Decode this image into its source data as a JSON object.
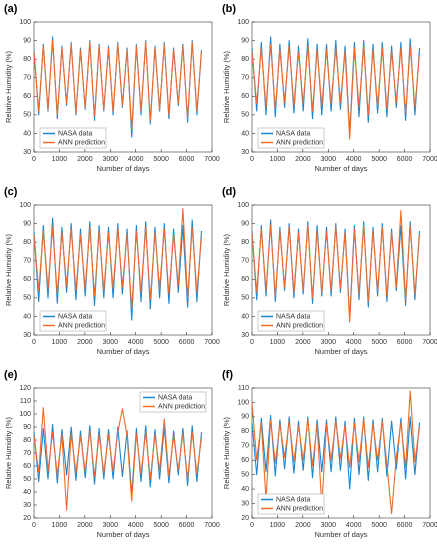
{
  "chart_data": [
    {
      "type": "line",
      "label": "(a)",
      "xlabel": "Number of days",
      "ylabel": "Relative Humidity (%)",
      "x": [
        0,
        183,
        366,
        549,
        732,
        915,
        1098,
        1281,
        1464,
        1647,
        1830,
        2013,
        2196,
        2379,
        2562,
        2745,
        2928,
        3111,
        3294,
        3477,
        3660,
        3843,
        4026,
        4209,
        4392,
        4575,
        4758,
        4941,
        5124,
        5307,
        5490,
        5673,
        5856,
        6039,
        6222,
        6405,
        6588
      ],
      "series": [
        {
          "name": "NASA data",
          "color": "#1a86cf",
          "values": [
            85,
            50,
            88,
            52,
            92,
            48,
            87,
            55,
            89,
            50,
            86,
            53,
            90,
            47,
            88,
            52,
            87,
            50,
            89,
            54,
            86,
            38,
            88,
            50,
            90,
            45,
            87,
            52,
            89,
            48,
            86,
            55,
            88,
            46,
            90,
            50,
            85
          ]
        },
        {
          "name": "ANN prediction",
          "color": "#f26b2c",
          "values": [
            84,
            52,
            87,
            53,
            90,
            50,
            86,
            56,
            88,
            51,
            85,
            54,
            89,
            49,
            87,
            53,
            86,
            52,
            88,
            55,
            85,
            42,
            87,
            52,
            89,
            47,
            86,
            53,
            88,
            50,
            85,
            56,
            87,
            48,
            89,
            52,
            84
          ]
        }
      ],
      "xlim": [
        0,
        7000
      ],
      "ylim": [
        30,
        100
      ],
      "xticks": [
        0,
        1000,
        2000,
        3000,
        4000,
        5000,
        6000,
        7000
      ],
      "yticks": [
        30,
        40,
        50,
        60,
        70,
        80,
        90,
        100
      ],
      "legend": "lower left"
    },
    {
      "type": "line",
      "label": "(b)",
      "xlabel": "Number of days",
      "ylabel": "Relative Humidity (%)",
      "x": [
        0,
        183,
        366,
        549,
        732,
        915,
        1098,
        1281,
        1464,
        1647,
        1830,
        2013,
        2196,
        2379,
        2562,
        2745,
        2928,
        3111,
        3294,
        3477,
        3660,
        3843,
        4026,
        4209,
        4392,
        4575,
        4758,
        4941,
        5124,
        5307,
        5490,
        5673,
        5856,
        6039,
        6222,
        6405,
        6588
      ],
      "series": [
        {
          "name": "NASA data",
          "color": "#1a86cf",
          "values": [
            86,
            52,
            89,
            50,
            92,
            49,
            88,
            54,
            90,
            51,
            87,
            52,
            91,
            48,
            88,
            50,
            88,
            52,
            90,
            53,
            87,
            40,
            89,
            49,
            90,
            46,
            88,
            51,
            89,
            49,
            87,
            54,
            89,
            47,
            91,
            50,
            86
          ]
        },
        {
          "name": "ANN prediction",
          "color": "#f26b2c",
          "values": [
            84,
            56,
            86,
            54,
            88,
            53,
            85,
            57,
            87,
            55,
            84,
            56,
            87,
            52,
            85,
            55,
            85,
            56,
            86,
            57,
            84,
            37,
            86,
            54,
            87,
            50,
            85,
            55,
            86,
            53,
            84,
            57,
            86,
            51,
            87,
            54,
            83
          ]
        }
      ],
      "xlim": [
        0,
        7000
      ],
      "ylim": [
        30,
        100
      ],
      "xticks": [
        0,
        1000,
        2000,
        3000,
        4000,
        5000,
        6000,
        7000
      ],
      "yticks": [
        30,
        40,
        50,
        60,
        70,
        80,
        90,
        100
      ],
      "legend": "lower left"
    },
    {
      "type": "line",
      "label": "(c)",
      "xlabel": "Number of days",
      "ylabel": "Relative Humidity (%)",
      "x": [
        0,
        183,
        366,
        549,
        732,
        915,
        1098,
        1281,
        1464,
        1647,
        1830,
        2013,
        2196,
        2379,
        2562,
        2745,
        2928,
        3111,
        3294,
        3477,
        3660,
        3843,
        4026,
        4209,
        4392,
        4575,
        4758,
        4941,
        5124,
        5307,
        5490,
        5673,
        5856,
        6039,
        6222,
        6405,
        6588
      ],
      "series": [
        {
          "name": "NASA data",
          "color": "#1a86cf",
          "values": [
            86,
            48,
            89,
            50,
            93,
            47,
            88,
            53,
            90,
            49,
            87,
            51,
            91,
            46,
            89,
            50,
            88,
            50,
            90,
            52,
            87,
            38,
            89,
            48,
            91,
            44,
            88,
            50,
            90,
            47,
            87,
            53,
            89,
            45,
            92,
            48,
            86
          ]
        },
        {
          "name": "ANN prediction",
          "color": "#f26b2c",
          "values": [
            84,
            54,
            86,
            55,
            88,
            52,
            85,
            57,
            87,
            54,
            84,
            55,
            88,
            51,
            86,
            54,
            85,
            55,
            87,
            56,
            84,
            44,
            86,
            53,
            88,
            49,
            85,
            55,
            87,
            52,
            84,
            57,
            98,
            50,
            88,
            53,
            83
          ]
        }
      ],
      "xlim": [
        0,
        7000
      ],
      "ylim": [
        30,
        100
      ],
      "xticks": [
        0,
        1000,
        2000,
        3000,
        4000,
        5000,
        6000,
        7000
      ],
      "yticks": [
        30,
        40,
        50,
        60,
        70,
        80,
        90,
        100
      ],
      "legend": "lower left"
    },
    {
      "type": "line",
      "label": "(d)",
      "xlabel": "Number of days",
      "ylabel": "Relative Humidity (%)",
      "x": [
        0,
        183,
        366,
        549,
        732,
        915,
        1098,
        1281,
        1464,
        1647,
        1830,
        2013,
        2196,
        2379,
        2562,
        2745,
        2928,
        3111,
        3294,
        3477,
        3660,
        3843,
        4026,
        4209,
        4392,
        4575,
        4758,
        4941,
        5124,
        5307,
        5490,
        5673,
        5856,
        6039,
        6222,
        6405,
        6588
      ],
      "series": [
        {
          "name": "NASA data",
          "color": "#1a86cf",
          "values": [
            86,
            49,
            89,
            51,
            92,
            48,
            88,
            54,
            90,
            50,
            87,
            52,
            91,
            47,
            89,
            51,
            88,
            51,
            90,
            53,
            87,
            39,
            89,
            49,
            91,
            45,
            88,
            51,
            90,
            48,
            87,
            54,
            89,
            46,
            91,
            49,
            86
          ]
        },
        {
          "name": "ANN prediction",
          "color": "#f26b2c",
          "values": [
            85,
            53,
            87,
            54,
            89,
            51,
            86,
            56,
            88,
            53,
            85,
            54,
            89,
            50,
            86,
            53,
            86,
            54,
            88,
            55,
            85,
            37,
            87,
            52,
            89,
            48,
            86,
            54,
            88,
            51,
            85,
            56,
            97,
            49,
            89,
            52,
            84
          ]
        }
      ],
      "xlim": [
        0,
        7000
      ],
      "ylim": [
        30,
        100
      ],
      "xticks": [
        0,
        1000,
        2000,
        3000,
        4000,
        5000,
        6000,
        7000
      ],
      "yticks": [
        30,
        40,
        50,
        60,
        70,
        80,
        90,
        100
      ],
      "legend": "lower left"
    },
    {
      "type": "line",
      "label": "(e)",
      "xlabel": "Number of days",
      "ylabel": "Relative Humidity (%)",
      "x": [
        0,
        183,
        366,
        549,
        732,
        915,
        1098,
        1281,
        1464,
        1647,
        1830,
        2013,
        2196,
        2379,
        2562,
        2745,
        2928,
        3111,
        3294,
        3477,
        3660,
        3843,
        4026,
        4209,
        4392,
        4575,
        4758,
        4941,
        5124,
        5307,
        5490,
        5673,
        5856,
        6039,
        6222,
        6405,
        6588
      ],
      "series": [
        {
          "name": "NASA data",
          "color": "#1a86cf",
          "values": [
            86,
            48,
            89,
            50,
            92,
            47,
            88,
            53,
            90,
            49,
            87,
            51,
            91,
            46,
            89,
            50,
            88,
            50,
            90,
            52,
            87,
            38,
            89,
            48,
            91,
            44,
            88,
            50,
            90,
            47,
            87,
            53,
            89,
            45,
            91,
            48,
            86
          ]
        },
        {
          "name": "ANN prediction",
          "color": "#f26b2c",
          "values": [
            83,
            55,
            105,
            56,
            86,
            53,
            84,
            26,
            85,
            55,
            83,
            56,
            87,
            52,
            84,
            55,
            84,
            56,
            86,
            104,
            83,
            33,
            85,
            54,
            86,
            50,
            84,
            56,
            96,
            52,
            83,
            57,
            85,
            50,
            86,
            54,
            82
          ]
        }
      ],
      "xlim": [
        0,
        7000
      ],
      "ylim": [
        20,
        120
      ],
      "xticks": [
        0,
        1000,
        2000,
        3000,
        4000,
        5000,
        6000,
        7000
      ],
      "yticks": [
        20,
        30,
        40,
        50,
        60,
        70,
        80,
        90,
        100,
        110,
        120
      ],
      "legend": "upper right"
    },
    {
      "type": "line",
      "label": "(f)",
      "xlabel": "Number of days",
      "ylabel": "Relative Humidity (%)",
      "x": [
        0,
        183,
        366,
        549,
        732,
        915,
        1098,
        1281,
        1464,
        1647,
        1830,
        2013,
        2196,
        2379,
        2562,
        2745,
        2928,
        3111,
        3294,
        3477,
        3660,
        3843,
        4026,
        4209,
        4392,
        4575,
        4758,
        4941,
        5124,
        5307,
        5490,
        5673,
        5856,
        6039,
        6222,
        6405,
        6588
      ],
      "series": [
        {
          "name": "NASA data",
          "color": "#1a86cf",
          "values": [
            86,
            50,
            89,
            52,
            91,
            49,
            88,
            54,
            90,
            51,
            87,
            53,
            90,
            48,
            88,
            52,
            88,
            52,
            90,
            53,
            87,
            40,
            89,
            50,
            90,
            46,
            88,
            52,
            89,
            49,
            87,
            54,
            89,
            47,
            90,
            50,
            86
          ]
        },
        {
          "name": "ANN prediction",
          "color": "#f26b2c",
          "values": [
            100,
            60,
            86,
            33,
            88,
            58,
            85,
            62,
            87,
            59,
            84,
            60,
            88,
            56,
            85,
            28,
            85,
            60,
            87,
            61,
            84,
            55,
            86,
            59,
            88,
            55,
            85,
            60,
            87,
            57,
            23,
            62,
            86,
            55,
            108,
            59,
            83
          ]
        }
      ],
      "xlim": [
        0,
        7000
      ],
      "ylim": [
        20,
        110
      ],
      "xticks": [
        0,
        1000,
        2000,
        3000,
        4000,
        5000,
        6000,
        7000
      ],
      "yticks": [
        20,
        30,
        40,
        50,
        60,
        70,
        80,
        90,
        100,
        110
      ],
      "legend": "lower left"
    }
  ]
}
